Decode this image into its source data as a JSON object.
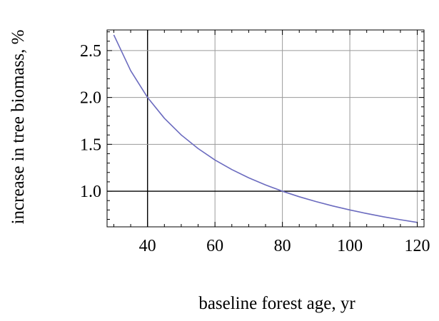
{
  "chart_data": {
    "type": "line",
    "title": "",
    "xlabel": "baseline forest age, yr",
    "ylabel": "increase in tree biomass, %",
    "xlim": [
      28,
      122
    ],
    "ylim": [
      0.62,
      2.72
    ],
    "grid": true,
    "grid_x": [
      40,
      60,
      80,
      100,
      120
    ],
    "grid_y": [
      1.0,
      1.5,
      2.0,
      2.5
    ],
    "emphasized_gridlines": {
      "x": 40,
      "y": 1.0
    },
    "x_ticks": [
      {
        "value": 40,
        "label": "40"
      },
      {
        "value": 60,
        "label": "60"
      },
      {
        "value": 80,
        "label": "80"
      },
      {
        "value": 100,
        "label": "100"
      },
      {
        "value": 120,
        "label": "120"
      }
    ],
    "y_ticks": [
      {
        "value": 1.0,
        "label": "1.0"
      },
      {
        "value": 1.5,
        "label": "1.5"
      },
      {
        "value": 2.0,
        "label": "2.0"
      },
      {
        "value": 2.5,
        "label": "2.5"
      }
    ],
    "series": [
      {
        "color": "#6b6bbf",
        "x": [
          30,
          35,
          40,
          45,
          50,
          55,
          60,
          65,
          70,
          75,
          80,
          85,
          90,
          95,
          100,
          105,
          110,
          115,
          120
        ],
        "y": [
          2.667,
          2.286,
          2.0,
          1.778,
          1.6,
          1.455,
          1.333,
          1.231,
          1.143,
          1.067,
          1.0,
          0.941,
          0.889,
          0.842,
          0.8,
          0.762,
          0.727,
          0.696,
          0.667
        ]
      }
    ]
  }
}
